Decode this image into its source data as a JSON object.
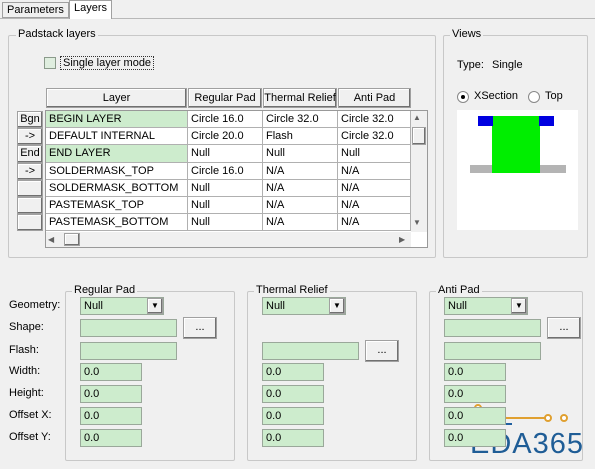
{
  "tabs": [
    "Parameters",
    "Layers"
  ],
  "padstack_layers": {
    "title": "Padstack layers",
    "single_layer_mode": "Single layer mode",
    "columns": [
      "Layer",
      "Regular Pad",
      "Thermal Relief",
      "Anti Pad"
    ],
    "row_buttons": [
      "Bgn",
      "->",
      "End",
      "->"
    ],
    "rows": [
      [
        "BEGIN LAYER",
        "Circle 16.0",
        "Circle 32.0",
        "Circle 32.0"
      ],
      [
        "DEFAULT INTERNAL",
        "Circle 20.0",
        "Flash",
        "Circle 32.0"
      ],
      [
        "END LAYER",
        "Null",
        "Null",
        "Null"
      ],
      [
        "SOLDERMASK_TOP",
        "Circle 16.0",
        "N/A",
        "N/A"
      ],
      [
        "SOLDERMASK_BOTTOM",
        "Null",
        "N/A",
        "N/A"
      ],
      [
        "PASTEMASK_TOP",
        "Null",
        "N/A",
        "N/A"
      ],
      [
        "PASTEMASK_BOTTOM",
        "Null",
        "N/A",
        "N/A"
      ]
    ]
  },
  "views": {
    "title": "Views",
    "type_label": "Type:",
    "type_value": "Single",
    "radios": [
      "XSection",
      "Top"
    ]
  },
  "field_labels": [
    "Geometry:",
    "Shape:",
    "Flash:",
    "Width:",
    "Height:",
    "Offset X:",
    "Offset Y:"
  ],
  "groups": [
    {
      "title": "Regular Pad",
      "geometry": "Null",
      "width": "0.0",
      "height": "0.0",
      "offset_x": "0.0",
      "offset_y": "0.0"
    },
    {
      "title": "Thermal Relief",
      "geometry": "Null",
      "width": "0.0",
      "height": "0.0",
      "offset_x": "0.0",
      "offset_y": "0.0"
    },
    {
      "title": "Anti Pad",
      "geometry": "Null",
      "width": "0.0",
      "height": "0.0",
      "offset_x": "0.0",
      "offset_y": "0.0"
    }
  ],
  "browse_button": "...",
  "watermark": "EDA365"
}
